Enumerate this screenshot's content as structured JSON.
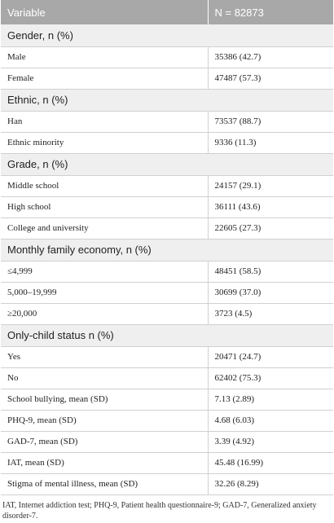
{
  "table": {
    "header": [
      "Variable",
      "N = 82873"
    ],
    "rows": [
      [
        "Gender, n (%)"
      ],
      [
        "Male",
        "35386 (42.7)"
      ],
      [
        "Female",
        "47487 (57.3)"
      ],
      [
        "Ethnic, n (%)"
      ],
      [
        "Han",
        "73537 (88.7)"
      ],
      [
        "Ethnic minority",
        "9336 (11.3)"
      ],
      [
        "Grade, n (%)"
      ],
      [
        "Middle school",
        "24157 (29.1)"
      ],
      [
        "High school",
        "36111 (43.6)"
      ],
      [
        "College and university",
        "22605 (27.3)"
      ],
      [
        "Monthly family economy, n (%)"
      ],
      [
        "≤4,999",
        "48451 (58.5)"
      ],
      [
        "5,000–19,999",
        "30699 (37.0)"
      ],
      [
        "≥20,000",
        "3723 (4.5)"
      ],
      [
        "Only-child status n (%)"
      ],
      [
        "Yes",
        "20471 (24.7)"
      ],
      [
        "No",
        "62402 (75.3)"
      ],
      [
        "School bullying, mean (SD)",
        "7.13 (2.89)"
      ],
      [
        "PHQ-9, mean (SD)",
        "4.68 (6.03)"
      ],
      [
        "GAD-7, mean (SD)",
        "3.39 (4.92)"
      ],
      [
        "IAT, mean (SD)",
        "45.48 (16.99)"
      ],
      [
        "Stigma of mental illness, mean (SD)",
        "32.26 (8.29)"
      ]
    ],
    "note": "IAT, Internet addiction test; PHQ-9, Patient health questionnaire-9; GAD-7, Generalized anxiety disorder-7."
  }
}
